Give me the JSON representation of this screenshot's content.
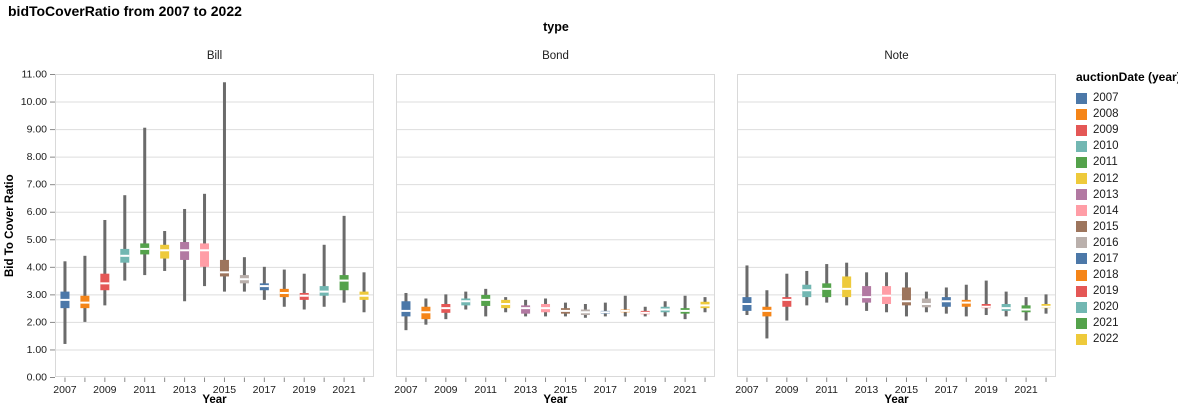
{
  "title": "bidToCoverRatio from 2007 to 2022",
  "chart_data": {
    "type": "boxplot",
    "facet_header": "type",
    "xlabel": "Year",
    "ylabel": "Bid To Cover Ratio",
    "ylim": [
      0,
      11
    ],
    "y_tick_labels": [
      "0.00",
      "1.00",
      "2.00",
      "3.00",
      "4.00",
      "5.00",
      "6.00",
      "7.00",
      "8.00",
      "9.00",
      "10.00",
      "11.00"
    ],
    "years": [
      "2007",
      "2008",
      "2009",
      "2010",
      "2011",
      "2012",
      "2013",
      "2014",
      "2015",
      "2016",
      "2017",
      "2018",
      "2019",
      "2020",
      "2021",
      "2022"
    ],
    "labeled_years": [
      "2007",
      "2009",
      "2011",
      "2013",
      "2015",
      "2017",
      "2019",
      "2021"
    ],
    "grid": true,
    "legend_position": "right",
    "legend": {
      "title": "auctionDate (year)",
      "entries": [
        {
          "label": "2007",
          "color": "#4c78a8"
        },
        {
          "label": "2008",
          "color": "#f58518"
        },
        {
          "label": "2009",
          "color": "#e45756"
        },
        {
          "label": "2010",
          "color": "#72b7b2"
        },
        {
          "label": "2011",
          "color": "#54a24b"
        },
        {
          "label": "2012",
          "color": "#eeca3b"
        },
        {
          "label": "2013",
          "color": "#b279a2"
        },
        {
          "label": "2014",
          "color": "#ff9da6"
        },
        {
          "label": "2015",
          "color": "#9d755d"
        },
        {
          "label": "2016",
          "color": "#bab0ac"
        },
        {
          "label": "2017",
          "color": "#4c78a8"
        },
        {
          "label": "2018",
          "color": "#f58518"
        },
        {
          "label": "2019",
          "color": "#e45756"
        },
        {
          "label": "2020",
          "color": "#72b7b2"
        },
        {
          "label": "2021",
          "color": "#54a24b"
        },
        {
          "label": "2022",
          "color": "#eeca3b"
        }
      ]
    },
    "facets": [
      {
        "name": "Bill",
        "boxes": [
          {
            "year": "2007",
            "low": 1.2,
            "q1": 2.5,
            "median": 2.8,
            "q3": 3.1,
            "high": 4.2
          },
          {
            "year": "2008",
            "low": 2.0,
            "q1": 2.5,
            "median": 2.7,
            "q3": 2.95,
            "high": 4.4
          },
          {
            "year": "2009",
            "low": 2.6,
            "q1": 3.15,
            "median": 3.4,
            "q3": 3.75,
            "high": 5.7
          },
          {
            "year": "2010",
            "low": 3.5,
            "q1": 4.15,
            "median": 4.4,
            "q3": 4.65,
            "high": 6.6
          },
          {
            "year": "2011",
            "low": 3.7,
            "q1": 4.45,
            "median": 4.65,
            "q3": 4.85,
            "high": 9.05
          },
          {
            "year": "2012",
            "low": 3.85,
            "q1": 4.3,
            "median": 4.6,
            "q3": 4.8,
            "high": 5.3
          },
          {
            "year": "2013",
            "low": 2.75,
            "q1": 4.25,
            "median": 4.6,
            "q3": 4.9,
            "high": 6.1
          },
          {
            "year": "2014",
            "low": 3.3,
            "q1": 4.0,
            "median": 4.6,
            "q3": 4.85,
            "high": 6.65
          },
          {
            "year": "2015",
            "low": 3.1,
            "q1": 3.65,
            "median": 3.8,
            "q3": 4.25,
            "high": 10.7
          },
          {
            "year": "2016",
            "low": 3.1,
            "q1": 3.4,
            "median": 3.55,
            "q3": 3.7,
            "high": 4.35
          },
          {
            "year": "2017",
            "low": 2.8,
            "q1": 3.15,
            "median": 3.3,
            "q3": 3.4,
            "high": 4.0
          },
          {
            "year": "2018",
            "low": 2.55,
            "q1": 2.9,
            "median": 3.05,
            "q3": 3.2,
            "high": 3.9
          },
          {
            "year": "2019",
            "low": 2.45,
            "q1": 2.8,
            "median": 2.95,
            "q3": 3.05,
            "high": 3.75
          },
          {
            "year": "2020",
            "low": 2.55,
            "q1": 2.95,
            "median": 3.1,
            "q3": 3.3,
            "high": 4.8
          },
          {
            "year": "2021",
            "low": 2.7,
            "q1": 3.15,
            "median": 3.5,
            "q3": 3.7,
            "high": 5.85
          },
          {
            "year": "2022",
            "low": 2.35,
            "q1": 2.8,
            "median": 2.95,
            "q3": 3.1,
            "high": 3.8
          }
        ]
      },
      {
        "name": "Bond",
        "boxes": [
          {
            "year": "2007",
            "low": 1.7,
            "q1": 2.2,
            "median": 2.4,
            "q3": 2.75,
            "high": 3.05
          },
          {
            "year": "2008",
            "low": 1.9,
            "q1": 2.1,
            "median": 2.35,
            "q3": 2.55,
            "high": 2.85
          },
          {
            "year": "2009",
            "low": 2.1,
            "q1": 2.33,
            "median": 2.5,
            "q3": 2.65,
            "high": 3.0
          },
          {
            "year": "2010",
            "low": 2.45,
            "q1": 2.6,
            "median": 2.75,
            "q3": 2.85,
            "high": 3.1
          },
          {
            "year": "2011",
            "low": 2.2,
            "q1": 2.58,
            "median": 2.8,
            "q3": 2.98,
            "high": 3.2
          },
          {
            "year": "2012",
            "low": 2.35,
            "q1": 2.5,
            "median": 2.65,
            "q3": 2.8,
            "high": 2.9
          },
          {
            "year": "2013",
            "low": 2.2,
            "q1": 2.3,
            "median": 2.5,
            "q3": 2.6,
            "high": 2.8
          },
          {
            "year": "2014",
            "low": 2.2,
            "q1": 2.35,
            "median": 2.5,
            "q3": 2.65,
            "high": 2.85
          },
          {
            "year": "2015",
            "low": 2.2,
            "q1": 2.3,
            "median": 2.4,
            "q3": 2.5,
            "high": 2.7
          },
          {
            "year": "2016",
            "low": 2.15,
            "q1": 2.25,
            "median": 2.35,
            "q3": 2.45,
            "high": 2.65
          },
          {
            "year": "2017",
            "low": 2.2,
            "q1": 2.3,
            "median": 2.35,
            "q3": 2.4,
            "high": 2.7
          },
          {
            "year": "2018",
            "low": 2.2,
            "q1": 2.35,
            "median": 2.4,
            "q3": 2.45,
            "high": 2.95
          },
          {
            "year": "2019",
            "low": 2.2,
            "q1": 2.28,
            "median": 2.33,
            "q3": 2.4,
            "high": 2.55
          },
          {
            "year": "2020",
            "low": 2.2,
            "q1": 2.35,
            "median": 2.45,
            "q3": 2.55,
            "high": 2.75
          },
          {
            "year": "2021",
            "low": 2.1,
            "q1": 2.3,
            "median": 2.4,
            "q3": 2.5,
            "high": 2.95
          },
          {
            "year": "2022",
            "low": 2.35,
            "q1": 2.5,
            "median": 2.6,
            "q3": 2.73,
            "high": 2.9
          }
        ]
      },
      {
        "name": "Note",
        "boxes": [
          {
            "year": "2007",
            "low": 2.25,
            "q1": 2.4,
            "median": 2.65,
            "q3": 2.9,
            "high": 4.05
          },
          {
            "year": "2008",
            "low": 1.4,
            "q1": 2.2,
            "median": 2.4,
            "q3": 2.55,
            "high": 3.15
          },
          {
            "year": "2009",
            "low": 2.05,
            "q1": 2.55,
            "median": 2.8,
            "q3": 2.9,
            "high": 3.75
          },
          {
            "year": "2010",
            "low": 2.6,
            "q1": 2.9,
            "median": 3.15,
            "q3": 3.35,
            "high": 3.85
          },
          {
            "year": "2011",
            "low": 2.7,
            "q1": 2.9,
            "median": 3.2,
            "q3": 3.4,
            "high": 4.1
          },
          {
            "year": "2012",
            "low": 2.6,
            "q1": 2.9,
            "median": 3.2,
            "q3": 3.65,
            "high": 4.15
          },
          {
            "year": "2013",
            "low": 2.4,
            "q1": 2.7,
            "median": 2.9,
            "q3": 3.3,
            "high": 3.8
          },
          {
            "year": "2014",
            "low": 2.35,
            "q1": 2.65,
            "median": 2.95,
            "q3": 3.3,
            "high": 3.8
          },
          {
            "year": "2015",
            "low": 2.2,
            "q1": 2.6,
            "median": 2.75,
            "q3": 3.25,
            "high": 3.8
          },
          {
            "year": "2016",
            "low": 2.35,
            "q1": 2.53,
            "median": 2.65,
            "q3": 2.85,
            "high": 3.1
          },
          {
            "year": "2017",
            "low": 2.3,
            "q1": 2.55,
            "median": 2.75,
            "q3": 2.9,
            "high": 3.25
          },
          {
            "year": "2018",
            "low": 2.2,
            "q1": 2.55,
            "median": 2.7,
            "q3": 2.8,
            "high": 3.35
          },
          {
            "year": "2019",
            "low": 2.25,
            "q1": 2.5,
            "median": 2.55,
            "q3": 2.65,
            "high": 3.5
          },
          {
            "year": "2020",
            "low": 2.2,
            "q1": 2.4,
            "median": 2.5,
            "q3": 2.65,
            "high": 3.1
          },
          {
            "year": "2021",
            "low": 2.05,
            "q1": 2.35,
            "median": 2.45,
            "q3": 2.6,
            "high": 2.9
          },
          {
            "year": "2022",
            "low": 2.3,
            "q1": 2.5,
            "median": 2.55,
            "q3": 2.65,
            "high": 3.0
          }
        ]
      }
    ],
    "style": {
      "whisker_color": "#6b6b6b",
      "median_color": "#ffffff",
      "grid_color": "#dddddd",
      "border_color": "#d9d9d9",
      "tick_color": "#8a8a8a"
    }
  }
}
